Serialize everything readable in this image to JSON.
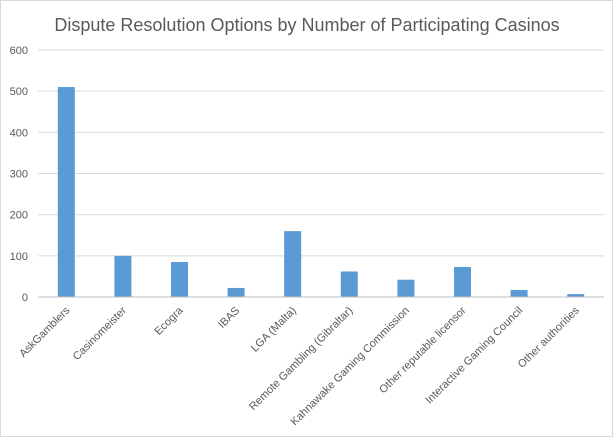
{
  "chart_data": {
    "type": "bar",
    "title": "Dispute Resolution Options by Number of Participating Casinos",
    "categories": [
      "AskGamblers",
      "Casinomeister",
      "Ecogra",
      "IBAS",
      "LGA (Malta)",
      "Remote Gambling (Gibraltar)",
      "Kahnawake Gaming Commission",
      "Other reputable licensor",
      "Interactive Gaming Council",
      "Other authorities"
    ],
    "values": [
      510,
      100,
      85,
      22,
      160,
      62,
      42,
      73,
      17,
      7
    ],
    "ylim": [
      0,
      600
    ],
    "yticks": [
      "0",
      "100",
      "200",
      "300",
      "400",
      "500",
      "600"
    ],
    "grid": true,
    "bar_color": "#5b9bd5"
  }
}
